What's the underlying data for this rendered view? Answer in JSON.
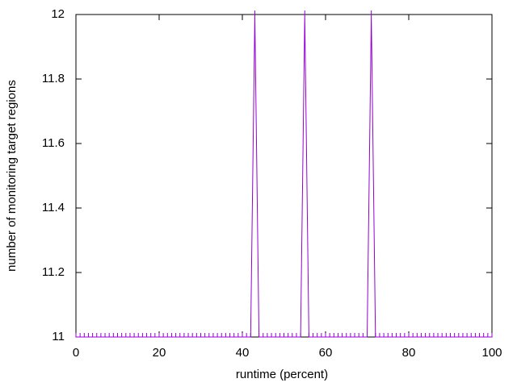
{
  "chart_data": {
    "type": "line",
    "xlabel": "runtime (percent)",
    "ylabel": "number of monitoring target regions",
    "x": [
      0,
      1,
      2,
      3,
      4,
      5,
      6,
      7,
      8,
      9,
      10,
      11,
      12,
      13,
      14,
      15,
      16,
      17,
      18,
      19,
      20,
      21,
      22,
      23,
      24,
      25,
      26,
      27,
      28,
      29,
      30,
      31,
      32,
      33,
      34,
      35,
      36,
      37,
      38,
      39,
      40,
      41,
      42,
      43,
      44,
      45,
      46,
      47,
      48,
      49,
      50,
      51,
      52,
      53,
      54,
      55,
      56,
      57,
      58,
      59,
      60,
      61,
      62,
      63,
      64,
      65,
      66,
      67,
      68,
      69,
      70,
      71,
      72,
      73,
      74,
      75,
      76,
      77,
      78,
      79,
      80,
      81,
      82,
      83,
      84,
      85,
      86,
      87,
      88,
      89,
      90,
      91,
      92,
      93,
      94,
      95,
      96,
      97,
      98,
      99,
      100
    ],
    "values": [
      11,
      11,
      11,
      11,
      11,
      11,
      11,
      11,
      11,
      11,
      11,
      11,
      11,
      11,
      11,
      11,
      11,
      11,
      11,
      11,
      11,
      11,
      11,
      11,
      11,
      11,
      11,
      11,
      11,
      11,
      11,
      11,
      11,
      11,
      11,
      11,
      11,
      11,
      11,
      11,
      11,
      11,
      11,
      12,
      11,
      11,
      11,
      11,
      11,
      11,
      11,
      11,
      11,
      11,
      11,
      12,
      11,
      11,
      11,
      11,
      11,
      11,
      11,
      11,
      11,
      11,
      11,
      11,
      11,
      11,
      11,
      12,
      11,
      11,
      11,
      11,
      11,
      11,
      11,
      11,
      11,
      11,
      11,
      11,
      11,
      11,
      11,
      11,
      11,
      11,
      11,
      11,
      11,
      11,
      11,
      11,
      11,
      11,
      11,
      11,
      11
    ],
    "color": "#9400d3",
    "xlim": [
      0,
      100
    ],
    "xticks": [
      0,
      20,
      40,
      60,
      80,
      100
    ],
    "ylim": [
      11,
      12
    ],
    "yticks": [
      11,
      11.2,
      11.4,
      11.6,
      11.8,
      12
    ],
    "grid": false
  }
}
